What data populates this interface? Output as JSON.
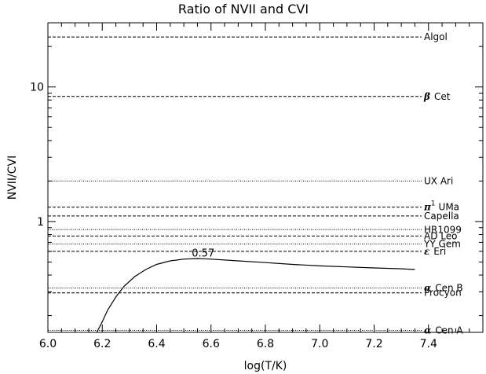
{
  "chart_data": {
    "type": "line",
    "title": "Ratio of NVII and CVI",
    "xlabel": "log(T/K)",
    "ylabel": "NVII/CVI",
    "xlim": [
      6.0,
      7.6
    ],
    "ylim": [
      0.15,
      30
    ],
    "yscale": "log",
    "grid": false,
    "x_ticks": [
      "6.0",
      "6.2",
      "6.4",
      "6.6",
      "6.8",
      "7.0",
      "7.2",
      "7.4"
    ],
    "y_tick_labels": [
      {
        "value": 1,
        "label": "1"
      },
      {
        "value": 10,
        "label": "10"
      }
    ],
    "series": [
      {
        "x": [
          6.18,
          6.2,
          6.22,
          6.25,
          6.28,
          6.32,
          6.36,
          6.4,
          6.45,
          6.5,
          6.55,
          6.6,
          6.7,
          6.8,
          6.9,
          7.0,
          7.1,
          7.2,
          7.3,
          7.35
        ],
        "y": [
          0.15,
          0.18,
          0.22,
          0.275,
          0.33,
          0.39,
          0.44,
          0.48,
          0.51,
          0.525,
          0.53,
          0.525,
          0.51,
          0.495,
          0.48,
          0.468,
          0.46,
          0.452,
          0.445,
          0.44
        ]
      }
    ],
    "annotations": [
      {
        "text": "0.57",
        "x": 6.6,
        "y": 0.57
      }
    ],
    "reference_lines": [
      {
        "prefix": "",
        "name": "Algol",
        "value": 23.5,
        "style": "dashed"
      },
      {
        "prefix": "β",
        "name": "Cet",
        "value": 8.5,
        "style": "dashed"
      },
      {
        "prefix": "",
        "name": "UX Ari",
        "value": 2.0,
        "style": "dotted"
      },
      {
        "prefix": "π",
        "sup": "1",
        "name": "UMa",
        "value": 1.28,
        "style": "dashed"
      },
      {
        "prefix": "",
        "name": "Capella",
        "value": 1.1,
        "style": "dashed"
      },
      {
        "prefix": "",
        "name": "HR1099",
        "value": 0.87,
        "style": "dotted"
      },
      {
        "prefix": "",
        "name": "AD Leo",
        "value": 0.78,
        "style": "dashed"
      },
      {
        "prefix": "",
        "name": "YY Gem",
        "value": 0.68,
        "style": "dotted"
      },
      {
        "prefix": "ε",
        "name": "Eri",
        "value": 0.6,
        "style": "dashed"
      },
      {
        "prefix": "α",
        "name": "Cen B",
        "value": 0.32,
        "style": "dotted"
      },
      {
        "prefix": "",
        "name": "Procyon",
        "value": 0.295,
        "style": "dashed"
      },
      {
        "prefix": "α",
        "name": "Cen A",
        "value": 0.155,
        "style": "dotted"
      }
    ]
  }
}
